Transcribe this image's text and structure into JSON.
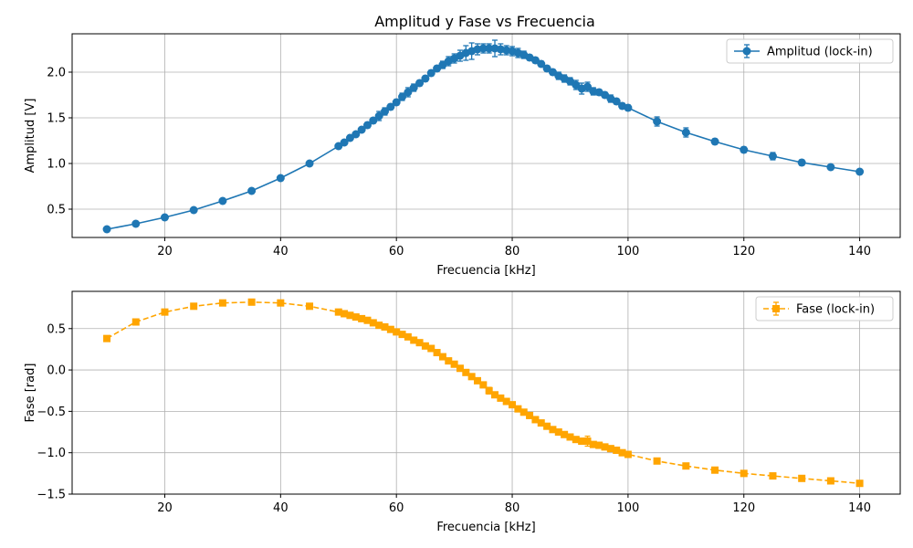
{
  "chart_data": [
    {
      "type": "line",
      "title": "Amplitud y Fase vs Frecuencia",
      "xlabel": "Frecuencia [kHz]",
      "ylabel": "Amplitud [V]",
      "xlim": [
        4,
        147
      ],
      "ylim": [
        0.19,
        2.42
      ],
      "xticks": [
        20,
        40,
        60,
        80,
        100,
        120,
        140
      ],
      "yticks": [
        0.5,
        1.0,
        1.5,
        2.0
      ],
      "ytick_labels": [
        "0.5",
        "1.0",
        "1.5",
        "2.0"
      ],
      "grid": true,
      "legend_position": "top-right",
      "color": "#1f77b4",
      "series": [
        {
          "name": "Amplitud (lock-in)",
          "marker": "circle",
          "linestyle": "solid",
          "x": [
            10,
            15,
            20,
            25,
            30,
            35,
            40,
            45,
            50,
            51,
            52,
            53,
            54,
            55,
            56,
            57,
            58,
            59,
            60,
            61,
            62,
            63,
            64,
            65,
            66,
            67,
            68,
            69,
            70,
            71,
            72,
            73,
            74,
            75,
            76,
            77,
            78,
            79,
            80,
            81,
            82,
            83,
            84,
            85,
            86,
            87,
            88,
            89,
            90,
            91,
            92,
            93,
            94,
            95,
            96,
            97,
            98,
            99,
            100,
            105,
            110,
            115,
            120,
            125,
            130,
            135,
            140
          ],
          "y": [
            0.28,
            0.34,
            0.41,
            0.49,
            0.59,
            0.7,
            0.84,
            1.0,
            1.19,
            1.23,
            1.28,
            1.32,
            1.37,
            1.42,
            1.47,
            1.52,
            1.57,
            1.62,
            1.67,
            1.73,
            1.78,
            1.83,
            1.88,
            1.93,
            1.99,
            2.04,
            2.08,
            2.12,
            2.15,
            2.18,
            2.21,
            2.23,
            2.25,
            2.26,
            2.26,
            2.26,
            2.25,
            2.24,
            2.23,
            2.21,
            2.19,
            2.16,
            2.13,
            2.09,
            2.04,
            2.0,
            1.96,
            1.93,
            1.9,
            1.86,
            1.82,
            1.84,
            1.79,
            1.78,
            1.75,
            1.71,
            1.68,
            1.63,
            1.61,
            1.46,
            1.34,
            1.24,
            1.15,
            1.08,
            1.01,
            0.96,
            0.91
          ],
          "yerr": [
            0.01,
            0.01,
            0.01,
            0.01,
            0.01,
            0.01,
            0.01,
            0.01,
            0.02,
            0.02,
            0.02,
            0.02,
            0.02,
            0.03,
            0.03,
            0.05,
            0.04,
            0.03,
            0.03,
            0.04,
            0.05,
            0.04,
            0.03,
            0.03,
            0.03,
            0.03,
            0.04,
            0.05,
            0.05,
            0.06,
            0.08,
            0.09,
            0.06,
            0.05,
            0.05,
            0.09,
            0.06,
            0.05,
            0.05,
            0.05,
            0.04,
            0.03,
            0.03,
            0.03,
            0.03,
            0.03,
            0.04,
            0.04,
            0.04,
            0.05,
            0.06,
            0.05,
            0.04,
            0.03,
            0.03,
            0.04,
            0.03,
            0.03,
            0.03,
            0.05,
            0.05,
            0.03,
            0.03,
            0.04,
            0.03,
            0.02,
            0.02
          ]
        }
      ]
    },
    {
      "type": "line",
      "title": "",
      "xlabel": "Frecuencia [kHz]",
      "ylabel": "Fase [rad]",
      "xlim": [
        4,
        147
      ],
      "ylim": [
        -1.5,
        0.95
      ],
      "xticks": [
        20,
        40,
        60,
        80,
        100,
        120,
        140
      ],
      "yticks": [
        -1.5,
        -1.0,
        -0.5,
        0.0,
        0.5
      ],
      "ytick_labels": [
        "−1.5",
        "−1.0",
        "−0.5",
        "0.0",
        "0.5"
      ],
      "grid": true,
      "legend_position": "top-right",
      "color": "#ffa500",
      "series": [
        {
          "name": "Fase (lock-in)",
          "marker": "square",
          "linestyle": "dashed",
          "x": [
            10,
            15,
            20,
            25,
            30,
            35,
            40,
            45,
            50,
            51,
            52,
            53,
            54,
            55,
            56,
            57,
            58,
            59,
            60,
            61,
            62,
            63,
            64,
            65,
            66,
            67,
            68,
            69,
            70,
            71,
            72,
            73,
            74,
            75,
            76,
            77,
            78,
            79,
            80,
            81,
            82,
            83,
            84,
            85,
            86,
            87,
            88,
            89,
            90,
            91,
            92,
            93,
            94,
            95,
            96,
            97,
            98,
            99,
            100,
            105,
            110,
            115,
            120,
            125,
            130,
            135,
            140
          ],
          "y": [
            0.38,
            0.58,
            0.7,
            0.77,
            0.81,
            0.82,
            0.81,
            0.77,
            0.7,
            0.68,
            0.66,
            0.64,
            0.62,
            0.6,
            0.57,
            0.54,
            0.52,
            0.49,
            0.46,
            0.43,
            0.4,
            0.36,
            0.33,
            0.29,
            0.26,
            0.21,
            0.16,
            0.11,
            0.07,
            0.02,
            -0.03,
            -0.08,
            -0.13,
            -0.18,
            -0.25,
            -0.3,
            -0.34,
            -0.38,
            -0.42,
            -0.47,
            -0.51,
            -0.55,
            -0.6,
            -0.64,
            -0.68,
            -0.72,
            -0.75,
            -0.78,
            -0.81,
            -0.84,
            -0.86,
            -0.86,
            -0.9,
            -0.91,
            -0.93,
            -0.95,
            -0.97,
            -1.0,
            -1.02,
            -1.1,
            -1.16,
            -1.21,
            -1.25,
            -1.28,
            -1.31,
            -1.34,
            -1.37
          ],
          "yerr": [
            0.01,
            0.01,
            0.01,
            0.01,
            0.01,
            0.01,
            0.01,
            0.01,
            0.01,
            0.01,
            0.01,
            0.01,
            0.01,
            0.01,
            0.01,
            0.01,
            0.01,
            0.01,
            0.01,
            0.01,
            0.01,
            0.01,
            0.01,
            0.01,
            0.01,
            0.01,
            0.01,
            0.01,
            0.01,
            0.01,
            0.02,
            0.02,
            0.02,
            0.02,
            0.04,
            0.02,
            0.02,
            0.02,
            0.02,
            0.02,
            0.02,
            0.02,
            0.02,
            0.02,
            0.02,
            0.02,
            0.02,
            0.02,
            0.02,
            0.02,
            0.02,
            0.06,
            0.02,
            0.02,
            0.02,
            0.02,
            0.02,
            0.02,
            0.02,
            0.02,
            0.02,
            0.02,
            0.02,
            0.02,
            0.02,
            0.02,
            0.02
          ]
        }
      ]
    }
  ]
}
